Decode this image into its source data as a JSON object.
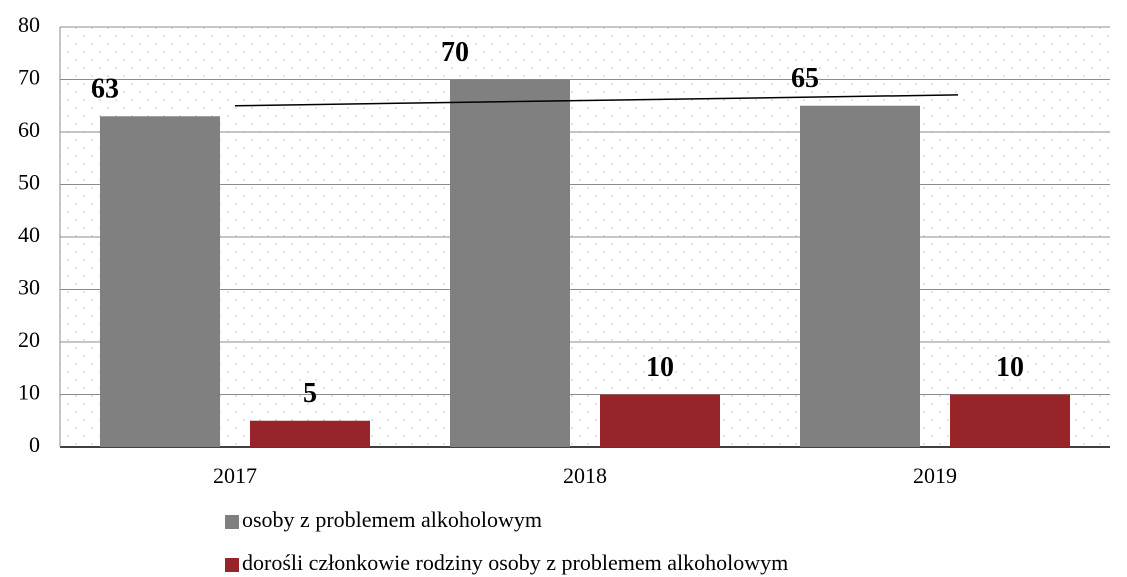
{
  "chart_data": {
    "type": "bar",
    "categories": [
      "2017",
      "2018",
      "2019"
    ],
    "series": [
      {
        "name": "osoby z problemem alkoholowym",
        "color": "#808080",
        "values": [
          63,
          70,
          65
        ]
      },
      {
        "name": "dorośli członkowie rodziny osoby z problemem alkoholowym",
        "color": "#962428",
        "values": [
          5,
          10,
          10
        ]
      }
    ],
    "ylim": [
      0,
      80
    ],
    "yticks": [
      0,
      10,
      20,
      30,
      40,
      50,
      60,
      70,
      80
    ],
    "grid": true,
    "trendline": {
      "series": 0,
      "color": "#000000"
    },
    "data_labels": true,
    "legend": "bottom"
  }
}
